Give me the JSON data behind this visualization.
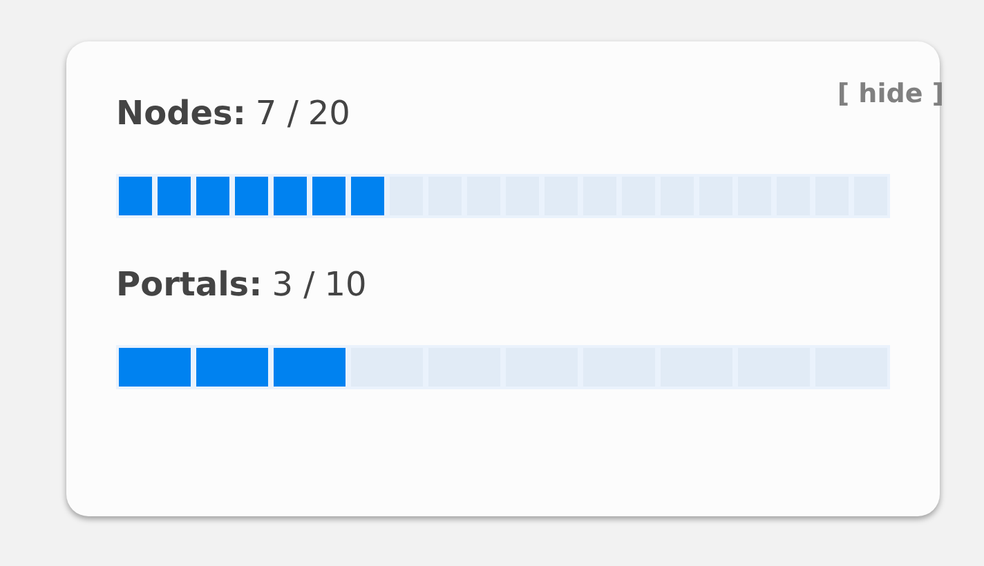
{
  "chart_data": [
    {
      "type": "other",
      "title": "Nodes:",
      "values": [
        7,
        20
      ],
      "value_labels": [
        "7 /",
        "20"
      ],
      "colors": [
        "#0082f0",
        "#e1ebf6"
      ],
      "annotations": [
        "[ hide ]"
      ]
    },
    {
      "type": "other",
      "title": "Portals:",
      "values": [
        3,
        10
      ],
      "value_labels": [
        "3 /",
        "10"
      ],
      "colors": [
        "#0082f0",
        "#e1ebf6"
      ]
    }
  ]
}
